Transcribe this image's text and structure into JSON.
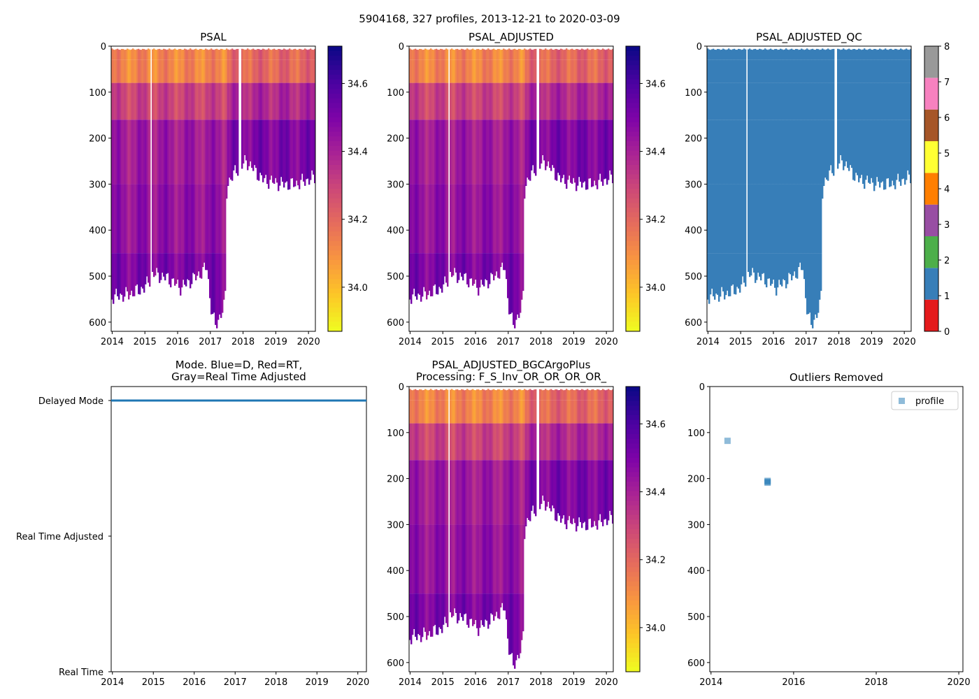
{
  "figure": {
    "suptitle": "5904168, 327 profiles, 2013-12-21 to 2020-03-09"
  },
  "colors": {
    "plasma": [
      "#0d0887",
      "#4c02a1",
      "#7e03a8",
      "#a92395",
      "#cc4778",
      "#e66c5c",
      "#f89540",
      "#fdc527",
      "#f0f921"
    ],
    "qc": [
      "#e41a1c",
      "#377eb8",
      "#4daf4a",
      "#984ea3",
      "#ff7f00",
      "#ffff33",
      "#a65628",
      "#f781bf",
      "#999999"
    ],
    "mode_line": "#1f77b4",
    "outlier_marker": "#1f77b4"
  },
  "chart_data": [
    {
      "id": "psal",
      "type": "heatmap",
      "title": "PSAL",
      "xlim": [
        2013.97,
        2020.21
      ],
      "ylim": [
        620,
        0
      ],
      "xticks": [
        "2014",
        "2015",
        "2016",
        "2017",
        "2018",
        "2019",
        "2020"
      ],
      "yticks": [
        "0",
        "100",
        "200",
        "300",
        "400",
        "500",
        "600"
      ],
      "colorbar": {
        "range": [
          33.87,
          34.71
        ],
        "ticks": [
          "34.0",
          "34.2",
          "34.4",
          "34.6"
        ]
      },
      "max_depth_profile": [
        {
          "t": 2014.0,
          "d": 545
        },
        {
          "t": 2014.5,
          "d": 540
        },
        {
          "t": 2015.0,
          "d": 525
        },
        {
          "t": 2015.25,
          "d": 495
        },
        {
          "t": 2015.7,
          "d": 505
        },
        {
          "t": 2016.1,
          "d": 525
        },
        {
          "t": 2016.6,
          "d": 500
        },
        {
          "t": 2016.9,
          "d": 480
        },
        {
          "t": 2017.0,
          "d": 560
        },
        {
          "t": 2017.15,
          "d": 610
        },
        {
          "t": 2017.45,
          "d": 560
        },
        {
          "t": 2017.5,
          "d": 300
        },
        {
          "t": 2017.8,
          "d": 270
        },
        {
          "t": 2018.1,
          "d": 250
        },
        {
          "t": 2018.6,
          "d": 290
        },
        {
          "t": 2019.2,
          "d": 300
        },
        {
          "t": 2019.6,
          "d": 300
        },
        {
          "t": 2020.0,
          "d": 290
        },
        {
          "t": 2020.2,
          "d": 285
        }
      ],
      "salinity_bands": [
        {
          "depth": [
            10,
            60
          ],
          "value": 34.12
        },
        {
          "depth": [
            60,
            150
          ],
          "value": 34.3
        },
        {
          "depth": [
            150,
            300
          ],
          "value": 34.42
        },
        {
          "depth": [
            300,
            450
          ],
          "value": 34.45
        },
        {
          "depth": [
            450,
            620
          ],
          "value": 34.5
        }
      ]
    },
    {
      "id": "psal-adjusted",
      "type": "heatmap",
      "title": "PSAL_ADJUSTED",
      "xlim": [
        2013.97,
        2020.21
      ],
      "ylim": [
        620,
        0
      ],
      "xticks": [
        "2014",
        "2015",
        "2016",
        "2017",
        "2018",
        "2019",
        "2020"
      ],
      "yticks": [
        "0",
        "100",
        "200",
        "300",
        "400",
        "500",
        "600"
      ],
      "colorbar": {
        "range": [
          33.87,
          34.71
        ],
        "ticks": [
          "34.0",
          "34.2",
          "34.4",
          "34.6"
        ]
      }
    },
    {
      "id": "psal-adjusted-qc",
      "type": "heatmap",
      "title": "PSAL_ADJUSTED_QC",
      "xlim": [
        2013.97,
        2020.21
      ],
      "ylim": [
        620,
        0
      ],
      "xticks": [
        "2014",
        "2015",
        "2016",
        "2017",
        "2018",
        "2019",
        "2020"
      ],
      "yticks": [
        "0",
        "100",
        "200",
        "300",
        "400",
        "500",
        "600"
      ],
      "colorbar": {
        "range": [
          0,
          8
        ],
        "ticks": [
          "0",
          "1",
          "2",
          "3",
          "4",
          "5",
          "6",
          "7",
          "8"
        ]
      },
      "dominant_flag": 1
    },
    {
      "id": "mode",
      "type": "line",
      "title": "Mode. Blue=D, Red=RT,",
      "title_line2": "Gray=Real Time Adjusted",
      "xlim": [
        2013.97,
        2020.21
      ],
      "xticks": [
        "2014",
        "2015",
        "2016",
        "2017",
        "2018",
        "2019",
        "2020"
      ],
      "ycategories": [
        "Real Time",
        "Real Time Adjusted",
        "Delayed Mode"
      ],
      "series": [
        {
          "name": "mode",
          "x": [
            2013.97,
            2020.21
          ],
          "y": [
            "Delayed Mode",
            "Delayed Mode"
          ]
        }
      ]
    },
    {
      "id": "psal-bgcargoplus",
      "type": "heatmap",
      "title": "PSAL_ADJUSTED_BGCArgoPlus",
      "title_line2": "Processing: F_S_Inv_OR_OR_OR_OR_",
      "xlim": [
        2013.97,
        2020.21
      ],
      "ylim": [
        620,
        0
      ],
      "xticks": [
        "2014",
        "2015",
        "2016",
        "2017",
        "2018",
        "2019",
        "2020"
      ],
      "yticks": [
        "0",
        "100",
        "200",
        "300",
        "400",
        "500",
        "600"
      ],
      "colorbar": {
        "range": [
          33.87,
          34.71
        ],
        "ticks": [
          "34.0",
          "34.2",
          "34.4",
          "34.6"
        ]
      }
    },
    {
      "id": "outliers",
      "type": "scatter",
      "title": "Outliers Removed",
      "xlim": [
        2013.97,
        2020.1
      ],
      "ylim": [
        620,
        0
      ],
      "xticks": [
        "2014",
        "2016",
        "2018",
        "2020"
      ],
      "yticks": [
        "0",
        "100",
        "200",
        "300",
        "400",
        "500",
        "600"
      ],
      "legend": {
        "label": "profile",
        "position": "top-right"
      },
      "points": [
        {
          "x": 2014.4,
          "y": 118
        },
        {
          "x": 2015.37,
          "y": 205
        },
        {
          "x": 2015.37,
          "y": 207
        },
        {
          "x": 2015.37,
          "y": 209
        }
      ]
    }
  ]
}
